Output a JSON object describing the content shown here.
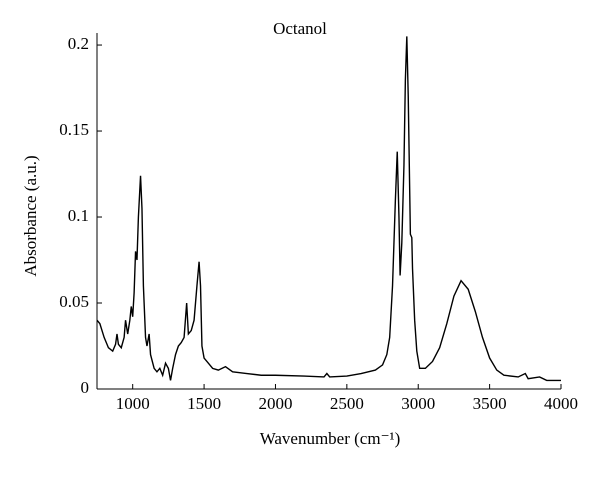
{
  "chart_data": {
    "type": "line",
    "title": "Octanol",
    "x_label": "Wavenumber (cm⁻¹)",
    "y_label": "Absorbance (a.u.)",
    "xlim": [
      750,
      4000
    ],
    "xticks": [
      1000,
      1500,
      2000,
      2500,
      3000,
      3500,
      4000
    ],
    "ylim": [
      0,
      0.207
    ],
    "yticks": [
      0,
      0.05,
      0.1,
      0.15,
      0.2
    ],
    "x": [
      750,
      770,
      800,
      830,
      860,
      880,
      890,
      900,
      920,
      940,
      950,
      965,
      980,
      990,
      1000,
      1010,
      1020,
      1030,
      1040,
      1055,
      1065,
      1075,
      1090,
      1100,
      1115,
      1125,
      1150,
      1170,
      1190,
      1210,
      1230,
      1250,
      1265,
      1280,
      1300,
      1320,
      1340,
      1360,
      1378,
      1390,
      1410,
      1430,
      1450,
      1465,
      1475,
      1485,
      1500,
      1530,
      1560,
      1600,
      1650,
      1700,
      1800,
      1900,
      2000,
      2200,
      2340,
      2360,
      2380,
      2500,
      2600,
      2700,
      2750,
      2780,
      2800,
      2820,
      2840,
      2853,
      2865,
      2873,
      2885,
      2900,
      2910,
      2920,
      2930,
      2945,
      2955,
      2960,
      2975,
      2990,
      3010,
      3050,
      3100,
      3150,
      3200,
      3250,
      3300,
      3350,
      3400,
      3450,
      3500,
      3550,
      3600,
      3700,
      3750,
      3770,
      3850,
      3900,
      4000
    ],
    "series": [
      {
        "color": "#000000",
        "values": [
          0.04,
          0.038,
          0.03,
          0.024,
          0.022,
          0.026,
          0.032,
          0.026,
          0.024,
          0.03,
          0.04,
          0.032,
          0.04,
          0.048,
          0.042,
          0.056,
          0.08,
          0.075,
          0.1,
          0.124,
          0.105,
          0.06,
          0.03,
          0.025,
          0.032,
          0.02,
          0.012,
          0.01,
          0.012,
          0.008,
          0.015,
          0.012,
          0.005,
          0.012,
          0.02,
          0.025,
          0.027,
          0.03,
          0.05,
          0.032,
          0.034,
          0.04,
          0.06,
          0.074,
          0.06,
          0.025,
          0.018,
          0.015,
          0.012,
          0.011,
          0.013,
          0.01,
          0.009,
          0.008,
          0.008,
          0.0075,
          0.007,
          0.009,
          0.007,
          0.0075,
          0.009,
          0.011,
          0.014,
          0.02,
          0.03,
          0.06,
          0.11,
          0.138,
          0.1,
          0.066,
          0.085,
          0.13,
          0.18,
          0.205,
          0.17,
          0.09,
          0.088,
          0.07,
          0.04,
          0.022,
          0.012,
          0.012,
          0.016,
          0.024,
          0.038,
          0.054,
          0.063,
          0.058,
          0.045,
          0.03,
          0.018,
          0.011,
          0.008,
          0.007,
          0.009,
          0.006,
          0.007,
          0.005,
          0.005
        ]
      }
    ]
  }
}
